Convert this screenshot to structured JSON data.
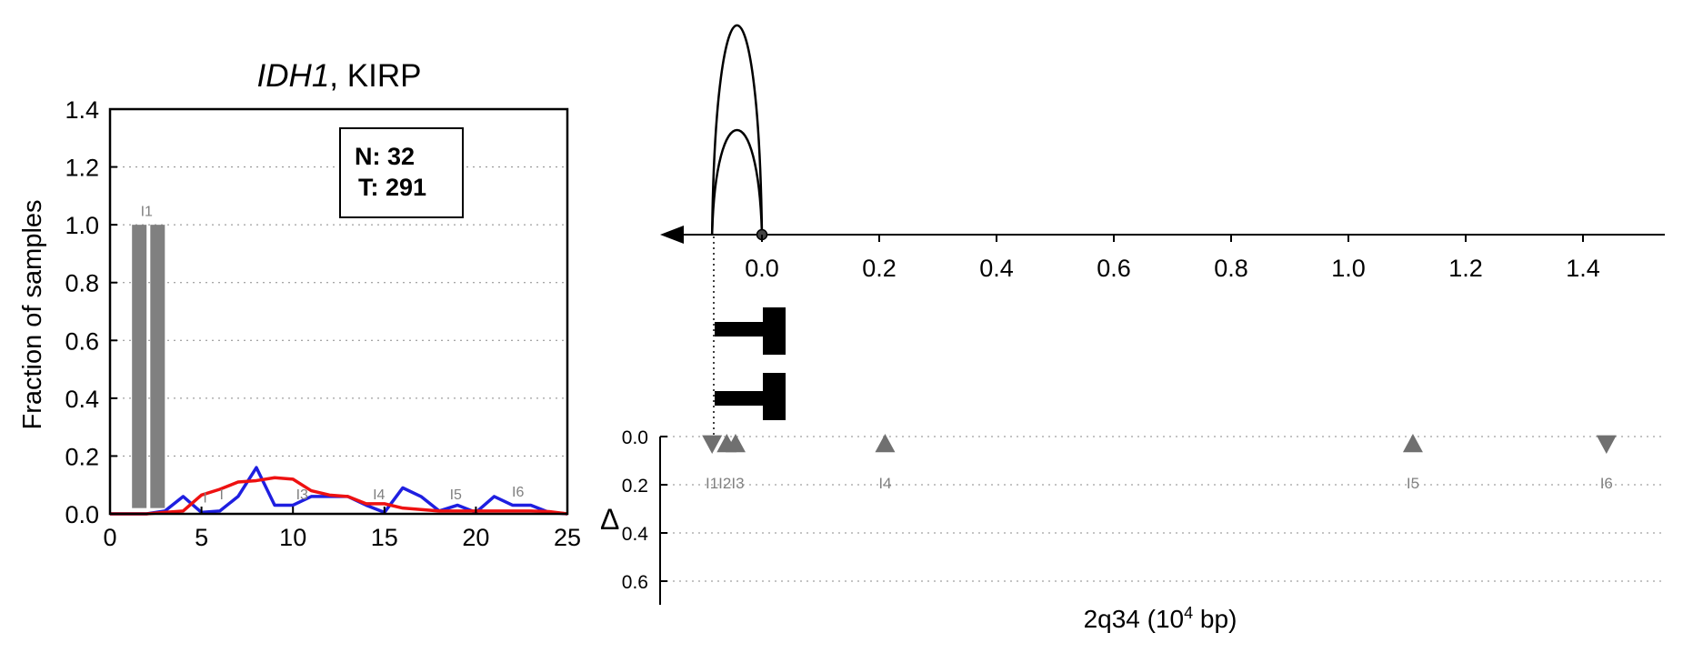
{
  "left_panel": {
    "title_gene": "IDH1",
    "title_rest": ", KIRP",
    "ylabel": "Fraction of samples",
    "xticks": [
      "0",
      "5",
      "10",
      "15",
      "20",
      "25"
    ],
    "yticks": [
      "0.0",
      "0.2",
      "0.4",
      "0.6",
      "0.8",
      "1.0",
      "1.2",
      "1.4"
    ],
    "legend_n": "N: 32",
    "legend_t": "T: 291"
  },
  "right_panel": {
    "xlabel_pre": "2q34 (10",
    "xlabel_sup": "4",
    "xlabel_post": " bp)",
    "delta_label": "Δ",
    "xticks": [
      "0.0",
      "0.2",
      "0.4",
      "0.6",
      "0.8",
      "1.0",
      "1.2",
      "1.4"
    ],
    "yticks": [
      "0.0",
      "0.2",
      "0.4",
      "0.6"
    ]
  },
  "chart_data": [
    {
      "type": "line",
      "xlim": [
        0,
        25
      ],
      "ylim": [
        0,
        1.4
      ],
      "grid": "horizontal dotted",
      "bars": [
        {
          "x": 1.6,
          "value": 1.0,
          "color": "#808080"
        },
        {
          "x": 2.6,
          "value": 1.0,
          "color": "#808080"
        }
      ],
      "series": [
        {
          "color": "#1f1fe0",
          "x": [
            0,
            1,
            2,
            3,
            4,
            5,
            6,
            7,
            8,
            9,
            10,
            11,
            12,
            13,
            14,
            15,
            16,
            17,
            18,
            19,
            20,
            21,
            22,
            23,
            24,
            25
          ],
          "values": [
            0,
            0,
            0,
            0.01,
            0.06,
            0.005,
            0.01,
            0.06,
            0.16,
            0.03,
            0.03,
            0.06,
            0.06,
            0.06,
            0.03,
            0.005,
            0.09,
            0.06,
            0.01,
            0.03,
            0.005,
            0.06,
            0.03,
            0.03,
            0.005,
            0
          ]
        },
        {
          "color": "#ee1111",
          "x": [
            0,
            1,
            2,
            3,
            4,
            5,
            6,
            7,
            8,
            9,
            10,
            11,
            12,
            13,
            14,
            15,
            16,
            17,
            18,
            19,
            20,
            21,
            22,
            23,
            24,
            25
          ],
          "values": [
            0,
            0,
            0,
            0.005,
            0.01,
            0.065,
            0.085,
            0.11,
            0.115,
            0.125,
            0.12,
            0.08,
            0.065,
            0.06,
            0.035,
            0.035,
            0.02,
            0.015,
            0.01,
            0.01,
            0.01,
            0.01,
            0.01,
            0.01,
            0.008,
            0
          ]
        }
      ],
      "feature_labels": [
        {
          "text": "I1",
          "x": 2.0,
          "y": 1.03
        },
        {
          "text": "I",
          "x": 5.2,
          "y": 0.04
        },
        {
          "text": "I",
          "x": 6.1,
          "y": 0.05
        },
        {
          "text": "I3",
          "x": 10.5,
          "y": 0.05
        },
        {
          "text": "I4",
          "x": 14.7,
          "y": 0.05
        },
        {
          "text": "I5",
          "x": 18.9,
          "y": 0.05
        },
        {
          "text": "I6",
          "x": 22.3,
          "y": 0.06
        }
      ]
    },
    {
      "type": "scatter",
      "xlim": [
        -0.17,
        1.53
      ],
      "ylim": [
        0,
        0.7
      ],
      "grid": "horizontal dotted",
      "arcs": [
        {
          "x_start": -0.085,
          "x_end": 0.0,
          "height": "tall"
        },
        {
          "x_start": -0.085,
          "x_end": 0.0,
          "height": "short"
        }
      ],
      "markers": [
        {
          "label": "I1",
          "x": -0.085,
          "delta": 0.03,
          "direction": "down"
        },
        {
          "label": "I2",
          "x": -0.06,
          "delta": 0.03,
          "direction": "up"
        },
        {
          "label": "I3",
          "x": -0.045,
          "delta": 0.03,
          "direction": "up"
        },
        {
          "label": "I4",
          "x": 0.21,
          "delta": 0.03,
          "direction": "up"
        },
        {
          "label": "I5",
          "x": 1.11,
          "delta": 0.03,
          "direction": "up"
        },
        {
          "label": "I6",
          "x": 1.44,
          "delta": 0.03,
          "direction": "down"
        }
      ],
      "marker_label_text": "I1I2I3",
      "color": "#707070"
    }
  ]
}
